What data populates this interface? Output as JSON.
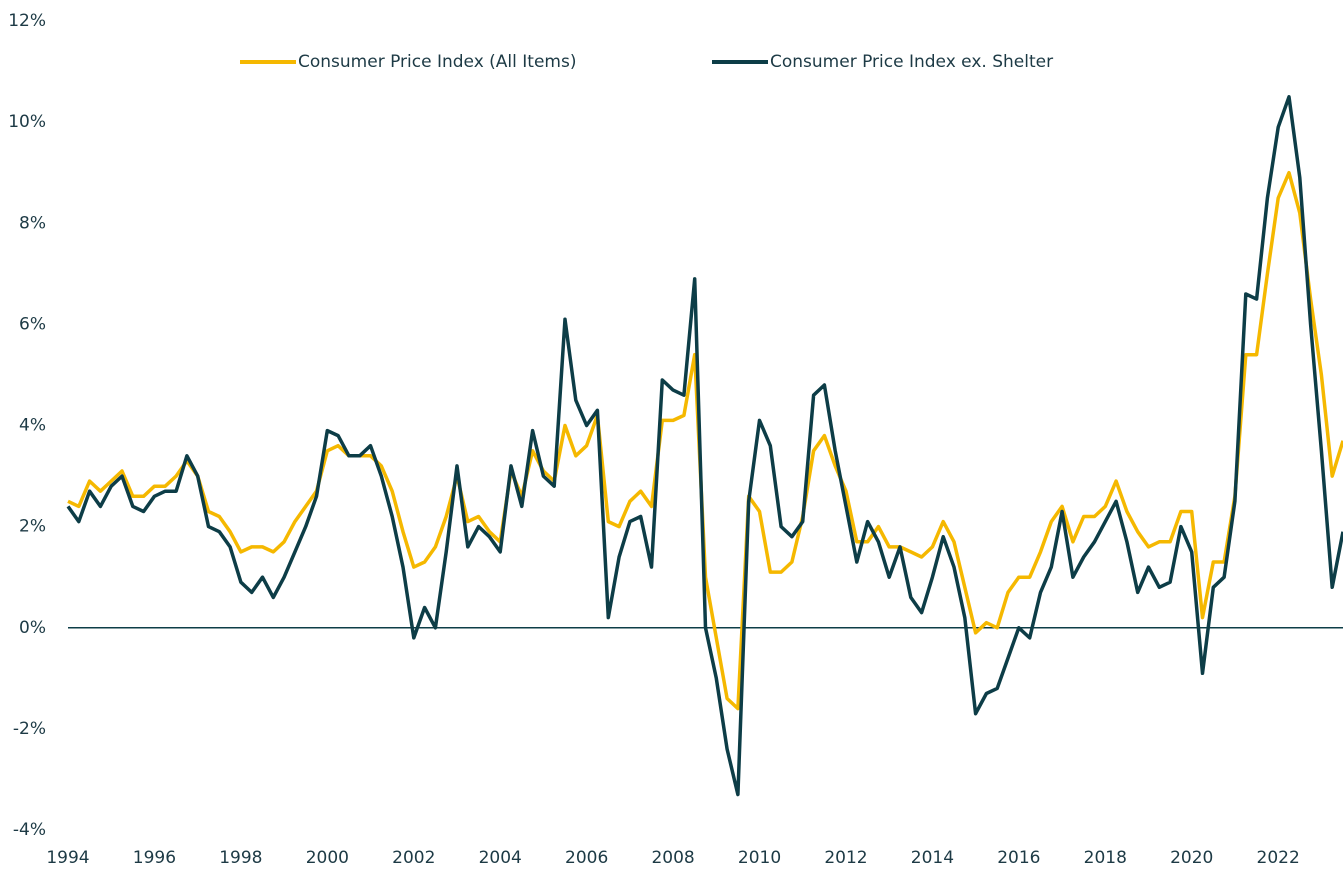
{
  "chart_data": {
    "type": "line",
    "x": [
      1994,
      1994.25,
      1994.5,
      1994.75,
      1995,
      1995.25,
      1995.5,
      1995.75,
      1996,
      1996.25,
      1996.5,
      1996.75,
      1997,
      1997.25,
      1997.5,
      1997.75,
      1998,
      1998.25,
      1998.5,
      1998.75,
      1999,
      1999.25,
      1999.5,
      1999.75,
      2000,
      2000.25,
      2000.5,
      2000.75,
      2001,
      2001.25,
      2001.5,
      2001.75,
      2002,
      2002.25,
      2002.5,
      2002.75,
      2003,
      2003.25,
      2003.5,
      2003.75,
      2004,
      2004.25,
      2004.5,
      2004.75,
      2005,
      2005.25,
      2005.5,
      2005.75,
      2006,
      2006.25,
      2006.5,
      2006.75,
      2007,
      2007.25,
      2007.5,
      2007.75,
      2008,
      2008.25,
      2008.5,
      2008.75,
      2009,
      2009.25,
      2009.5,
      2009.75,
      2010,
      2010.25,
      2010.5,
      2010.75,
      2011,
      2011.25,
      2011.5,
      2011.75,
      2012,
      2012.25,
      2012.5,
      2012.75,
      2013,
      2013.25,
      2013.5,
      2013.75,
      2014,
      2014.25,
      2014.5,
      2014.75,
      2015,
      2015.25,
      2015.5,
      2015.75,
      2016,
      2016.25,
      2016.5,
      2016.75,
      2017,
      2017.25,
      2017.5,
      2017.75,
      2018,
      2018.25,
      2018.5,
      2018.75,
      2019,
      2019.25,
      2019.5,
      2019.75,
      2020,
      2020.25,
      2020.5,
      2020.75,
      2021,
      2021.25,
      2021.5,
      2021.75,
      2022,
      2022.25,
      2022.5,
      2022.75,
      2023,
      2023.25,
      2023.5
    ],
    "series": [
      {
        "name": "Consumer Price Index (All Items)",
        "color": "#f5b800",
        "values": [
          2.5,
          2.4,
          2.9,
          2.7,
          2.9,
          3.1,
          2.6,
          2.6,
          2.8,
          2.8,
          3.0,
          3.3,
          3.0,
          2.3,
          2.2,
          1.9,
          1.5,
          1.6,
          1.6,
          1.5,
          1.7,
          2.1,
          2.4,
          2.7,
          3.5,
          3.6,
          3.4,
          3.4,
          3.4,
          3.2,
          2.7,
          1.9,
          1.2,
          1.3,
          1.6,
          2.2,
          3.0,
          2.1,
          2.2,
          1.9,
          1.7,
          3.1,
          2.6,
          3.5,
          3.1,
          2.9,
          4.0,
          3.4,
          3.6,
          4.2,
          2.1,
          2.0,
          2.5,
          2.7,
          2.4,
          4.1,
          4.1,
          4.2,
          5.4,
          1.0,
          -0.2,
          -1.4,
          -1.6,
          2.6,
          2.3,
          1.1,
          1.1,
          1.3,
          2.2,
          3.5,
          3.8,
          3.2,
          2.7,
          1.7,
          1.7,
          2.0,
          1.6,
          1.6,
          1.5,
          1.4,
          1.6,
          2.1,
          1.7,
          0.8,
          -0.1,
          0.1,
          0.0,
          0.7,
          1.0,
          1.0,
          1.5,
          2.1,
          2.4,
          1.7,
          2.2,
          2.2,
          2.4,
          2.9,
          2.3,
          1.9,
          1.6,
          1.7,
          1.7,
          2.3,
          2.3,
          0.2,
          1.3,
          1.3,
          2.6,
          5.4,
          5.4,
          7.0,
          8.5,
          9.0,
          8.2,
          6.5,
          5.0,
          3.0,
          3.7
        ]
      },
      {
        "name": "Consumer Price Index ex. Shelter",
        "color": "#0d3d47",
        "values": [
          2.4,
          2.1,
          2.7,
          2.4,
          2.8,
          3.0,
          2.4,
          2.3,
          2.6,
          2.7,
          2.7,
          3.4,
          3.0,
          2.0,
          1.9,
          1.6,
          0.9,
          0.7,
          1.0,
          0.6,
          1.0,
          1.5,
          2.0,
          2.6,
          3.9,
          3.8,
          3.4,
          3.4,
          3.6,
          3.0,
          2.2,
          1.2,
          -0.2,
          0.4,
          0.0,
          1.5,
          3.2,
          1.6,
          2.0,
          1.8,
          1.5,
          3.2,
          2.4,
          3.9,
          3.0,
          2.8,
          6.1,
          4.5,
          4.0,
          4.3,
          0.2,
          1.4,
          2.1,
          2.2,
          1.2,
          4.9,
          4.7,
          4.6,
          6.9,
          0.0,
          -1.0,
          -2.4,
          -3.3,
          2.5,
          4.1,
          3.6,
          2.0,
          1.8,
          2.1,
          4.6,
          4.8,
          3.5,
          2.4,
          1.3,
          2.1,
          1.7,
          1.0,
          1.6,
          0.6,
          0.3,
          1.0,
          1.8,
          1.2,
          0.2,
          -1.7,
          -1.3,
          -1.2,
          -0.6,
          0.0,
          -0.2,
          0.7,
          1.2,
          2.3,
          1.0,
          1.4,
          1.7,
          2.1,
          2.5,
          1.7,
          0.7,
          1.2,
          0.8,
          0.9,
          2.0,
          1.5,
          -0.9,
          0.8,
          1.0,
          2.5,
          6.6,
          6.5,
          8.5,
          9.9,
          10.5,
          8.9,
          6.0,
          3.5,
          0.8,
          1.9
        ]
      }
    ],
    "xlim": [
      1994,
      2023.5
    ],
    "xticks": [
      1994,
      1996,
      1998,
      2000,
      2002,
      2004,
      2006,
      2008,
      2010,
      2012,
      2014,
      2016,
      2018,
      2020,
      2022
    ],
    "ylim": [
      -4,
      12
    ],
    "yticks": [
      {
        "value": -4,
        "label": "-4%"
      },
      {
        "value": -2,
        "label": "-2%"
      },
      {
        "value": 0,
        "label": "0%"
      },
      {
        "value": 2,
        "label": "2%"
      },
      {
        "value": 4,
        "label": "4%"
      },
      {
        "value": 6,
        "label": "6%"
      },
      {
        "value": 8,
        "label": "8%"
      },
      {
        "value": 10,
        "label": "10%"
      },
      {
        "value": 12,
        "label": "12%"
      }
    ],
    "grid": false,
    "legend": "top"
  }
}
